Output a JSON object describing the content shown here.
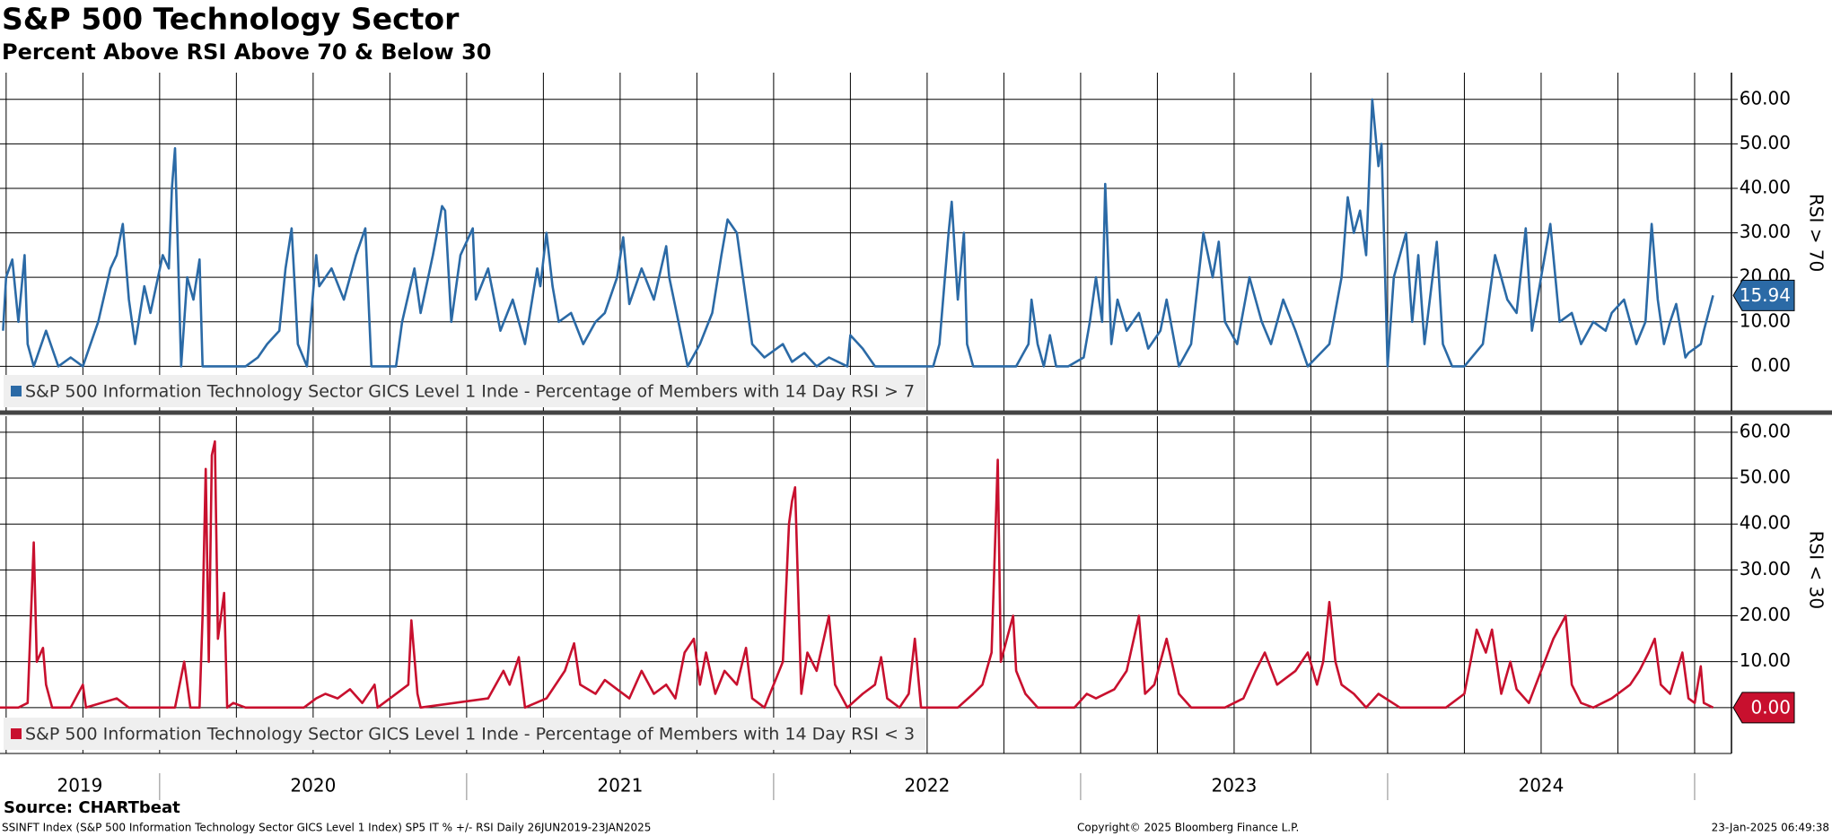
{
  "header": {
    "title": "S&P 500 Technology Sector",
    "subtitle": "Percent Above RSI Above 70 & Below 30"
  },
  "chart_data": [
    {
      "type": "line",
      "y_label": "RSI > 70",
      "x": [
        2019.49,
        2019.5,
        2019.52,
        2019.54,
        2019.56,
        2019.57,
        2019.59,
        2019.63,
        2019.67,
        2019.71,
        2019.75,
        2019.8,
        2019.84,
        2019.86,
        2019.88,
        2019.9,
        2019.92,
        2019.95,
        2019.97,
        2020.01,
        2020.03,
        2020.04,
        2020.05,
        2020.07,
        2020.09,
        2020.11,
        2020.13,
        2020.14,
        2020.28,
        2020.32,
        2020.35,
        2020.39,
        2020.41,
        2020.43,
        2020.45,
        2020.48,
        2020.51,
        2020.52,
        2020.56,
        2020.6,
        2020.64,
        2020.67,
        2020.69,
        2020.77,
        2020.79,
        2020.83,
        2020.85,
        2020.89,
        2020.92,
        2020.93,
        2020.95,
        2020.98,
        2021.02,
        2021.03,
        2021.07,
        2021.11,
        2021.15,
        2021.19,
        2021.23,
        2021.24,
        2021.26,
        2021.28,
        2021.3,
        2021.34,
        2021.38,
        2021.42,
        2021.45,
        2021.49,
        2021.51,
        2021.53,
        2021.57,
        2021.61,
        2021.65,
        2021.66,
        2021.69,
        2021.72,
        2021.76,
        2021.8,
        2021.83,
        2021.85,
        2021.88,
        2021.9,
        2021.93,
        2021.97,
        2022.03,
        2022.06,
        2022.1,
        2022.14,
        2022.18,
        2022.24,
        2022.25,
        2022.29,
        2022.33,
        2022.52,
        2022.54,
        2022.57,
        2022.58,
        2022.6,
        2022.62,
        2022.63,
        2022.65,
        2022.79,
        2022.83,
        2022.84,
        2022.86,
        2022.88,
        2022.9,
        2022.92,
        2022.96,
        2023.01,
        2023.03,
        2023.05,
        2023.07,
        2023.08,
        2023.1,
        2023.12,
        2023.15,
        2023.19,
        2023.22,
        2023.26,
        2023.28,
        2023.32,
        2023.36,
        2023.4,
        2023.43,
        2023.45,
        2023.47,
        2023.51,
        2023.55,
        2023.59,
        2023.62,
        2023.66,
        2023.7,
        2023.74,
        2023.81,
        2023.85,
        2023.87,
        2023.89,
        2023.91,
        2023.93,
        2023.95,
        2023.97,
        2023.98,
        2024.0,
        2024.02,
        2024.06,
        2024.08,
        2024.1,
        2024.12,
        2024.16,
        2024.18,
        2024.21,
        2024.25,
        2024.31,
        2024.35,
        2024.37,
        2024.39,
        2024.42,
        2024.45,
        2024.47,
        2024.5,
        2024.53,
        2024.56,
        2024.6,
        2024.63,
        2024.67,
        2024.71,
        2024.73,
        2024.77,
        2024.81,
        2024.84,
        2024.86,
        2024.88,
        2024.9,
        2024.92,
        2024.94,
        2024.97,
        2024.98,
        2025.02,
        2025.03,
        2025.06
      ],
      "series": [
        {
          "name": "S&P 500 Information Technology Sector GICS Level 1 Inde - Percentage of Members with 14 Day RSI > 7",
          "color": "#2b6aa6",
          "last_label": "15.94",
          "values": [
            8,
            20,
            24,
            10,
            25,
            5,
            0,
            8,
            0,
            2,
            0,
            10,
            22,
            25,
            32,
            15,
            5,
            18,
            12,
            25,
            22,
            40,
            49,
            0,
            20,
            15,
            24,
            0,
            0,
            2,
            5,
            8,
            22,
            31,
            5,
            0,
            25,
            18,
            22,
            15,
            25,
            31,
            0,
            0,
            10,
            22,
            12,
            25,
            36,
            35,
            10,
            25,
            31,
            15,
            22,
            8,
            15,
            5,
            22,
            18,
            30,
            18,
            10,
            12,
            5,
            10,
            12,
            20,
            29,
            14,
            22,
            15,
            27,
            20,
            10,
            0,
            5,
            12,
            25,
            33,
            30,
            20,
            5,
            2,
            5,
            1,
            3,
            0,
            2,
            0,
            7,
            4,
            0,
            0,
            5,
            30,
            37,
            15,
            30,
            5,
            0,
            0,
            5,
            15,
            5,
            0,
            7,
            0,
            0,
            2,
            10,
            20,
            10,
            41,
            5,
            15,
            8,
            12,
            4,
            8,
            15,
            0,
            5,
            30,
            20,
            28,
            10,
            5,
            20,
            10,
            5,
            15,
            8,
            0,
            5,
            20,
            38,
            30,
            35,
            25,
            60,
            45,
            50,
            0,
            20,
            30,
            10,
            25,
            5,
            28,
            5,
            0,
            0,
            5,
            25,
            20,
            15,
            12,
            31,
            8,
            20,
            32,
            10,
            12,
            5,
            10,
            8,
            12,
            15,
            5,
            10,
            32,
            15,
            5,
            10,
            14,
            2,
            3,
            5,
            8,
            15.94
          ]
        }
      ],
      "xlim": [
        2019.48,
        2025.12
      ],
      "ylim": [
        -10,
        66
      ],
      "yticks": [
        {
          "value": 0,
          "label": "0.00"
        },
        {
          "value": 10,
          "label": "10.00"
        },
        {
          "value": 20,
          "label": "20.00"
        },
        {
          "value": 30,
          "label": "30.00"
        },
        {
          "value": 40,
          "label": "40.00"
        },
        {
          "value": 50,
          "label": "50.00"
        },
        {
          "value": 60,
          "label": "60.00"
        }
      ],
      "x_grid": [
        2019.5,
        2019.75,
        2020,
        2020.25,
        2020.5,
        2020.75,
        2021,
        2021.25,
        2021.5,
        2021.75,
        2022,
        2022.25,
        2022.5,
        2022.75,
        2023,
        2023.25,
        2023.5,
        2023.75,
        2024,
        2024.25,
        2024.5,
        2024.75,
        2025
      ],
      "grid": true,
      "legend": "bottom-left"
    },
    {
      "type": "line",
      "y_label": "RSI < 30",
      "x": [
        2019.48,
        2019.54,
        2019.57,
        2019.59,
        2019.6,
        2019.62,
        2019.63,
        2019.65,
        2019.71,
        2019.75,
        2019.76,
        2019.86,
        2019.9,
        2020.05,
        2020.08,
        2020.1,
        2020.13,
        2020.14,
        2020.15,
        2020.16,
        2020.17,
        2020.18,
        2020.19,
        2020.21,
        2020.22,
        2020.24,
        2020.28,
        2020.47,
        2020.51,
        2020.54,
        2020.58,
        2020.62,
        2020.66,
        2020.7,
        2020.71,
        2020.81,
        2020.82,
        2020.84,
        2020.85,
        2021.07,
        2021.12,
        2021.14,
        2021.17,
        2021.19,
        2021.26,
        2021.32,
        2021.35,
        2021.37,
        2021.42,
        2021.45,
        2021.49,
        2021.53,
        2021.57,
        2021.61,
        2021.65,
        2021.68,
        2021.71,
        2021.74,
        2021.76,
        2021.78,
        2021.81,
        2021.84,
        2021.88,
        2021.91,
        2021.93,
        2021.97,
        2022.03,
        2022.05,
        2022.06,
        2022.07,
        2022.09,
        2022.11,
        2022.14,
        2022.18,
        2022.2,
        2022.24,
        2022.29,
        2022.33,
        2022.35,
        2022.37,
        2022.41,
        2022.44,
        2022.46,
        2022.48,
        2022.6,
        2022.65,
        2022.68,
        2022.71,
        2022.73,
        2022.74,
        2022.76,
        2022.78,
        2022.79,
        2022.82,
        2022.86,
        2022.98,
        2023.02,
        2023.05,
        2023.11,
        2023.15,
        2023.19,
        2023.21,
        2023.24,
        2023.28,
        2023.32,
        2023.36,
        2023.47,
        2023.53,
        2023.57,
        2023.6,
        2023.64,
        2023.7,
        2023.74,
        2023.77,
        2023.79,
        2023.81,
        2023.83,
        2023.85,
        2023.89,
        2023.93,
        2023.97,
        2024.04,
        2024.19,
        2024.25,
        2024.27,
        2024.29,
        2024.32,
        2024.34,
        2024.37,
        2024.4,
        2024.42,
        2024.46,
        2024.5,
        2024.54,
        2024.58,
        2024.6,
        2024.63,
        2024.67,
        2024.73,
        2024.79,
        2024.82,
        2024.85,
        2024.87,
        2024.89,
        2024.92,
        2024.96,
        2024.98,
        2025.0,
        2025.02,
        2025.03,
        2025.06
      ],
      "series": [
        {
          "name": "S&P 500 Information Technology Sector GICS Level 1 Inde - Percentage of Members with 14 Day RSI < 3",
          "color": "#c8102e",
          "last_label": "0.00",
          "values": [
            0,
            0,
            1,
            36,
            10,
            13,
            5,
            0,
            0,
            5,
            0,
            2,
            0,
            0,
            10,
            0,
            0,
            20,
            52,
            10,
            55,
            58,
            15,
            25,
            0,
            1,
            0,
            0,
            2,
            3,
            2,
            4,
            1,
            5,
            0,
            5,
            19,
            3,
            0,
            2,
            8,
            5,
            11,
            0,
            2,
            8,
            14,
            5,
            3,
            6,
            4,
            2,
            8,
            3,
            5,
            2,
            12,
            15,
            5,
            12,
            3,
            8,
            5,
            13,
            2,
            0,
            10,
            40,
            45,
            48,
            3,
            12,
            8,
            20,
            5,
            0,
            3,
            5,
            11,
            2,
            0,
            3,
            15,
            0,
            0,
            3,
            5,
            12,
            54,
            10,
            15,
            20,
            8,
            3,
            0,
            0,
            3,
            2,
            4,
            8,
            20,
            3,
            5,
            15,
            3,
            0,
            0,
            2,
            8,
            12,
            5,
            8,
            12,
            5,
            10,
            23,
            10,
            5,
            3,
            0,
            3,
            0,
            0,
            3,
            10,
            17,
            12,
            17,
            3,
            10,
            4,
            1,
            8,
            15,
            20,
            5,
            1,
            0,
            2,
            5,
            8,
            12,
            15,
            5,
            3,
            12,
            2,
            1,
            9,
            1,
            0
          ]
        }
      ],
      "xlim": [
        2019.48,
        2025.12
      ],
      "ylim": [
        -10,
        63.5
      ],
      "yticks": [
        {
          "value": 0,
          "label": "0.00"
        },
        {
          "value": 10,
          "label": "10.00"
        },
        {
          "value": 20,
          "label": "20.00"
        },
        {
          "value": 30,
          "label": "30.00"
        },
        {
          "value": 40,
          "label": "40.00"
        },
        {
          "value": 50,
          "label": "50.00"
        },
        {
          "value": 60,
          "label": "60.00"
        }
      ],
      "x_grid": [
        2019.5,
        2019.75,
        2020,
        2020.25,
        2020.5,
        2020.75,
        2021,
        2021.25,
        2021.5,
        2021.75,
        2022,
        2022.25,
        2022.5,
        2022.75,
        2023,
        2023.25,
        2023.5,
        2023.75,
        2024,
        2024.25,
        2024.5,
        2024.75,
        2025
      ],
      "xticks": [
        2019,
        2020,
        2021,
        2022,
        2023,
        2024
      ],
      "grid": true,
      "legend": "bottom-left"
    }
  ],
  "footer": {
    "source": "Source: CHARTbeat",
    "description": "SSINFT Index (S&P 500 Information Technology Sector GICS Level 1 Index) SP5 IT % +/- RSI  Daily 26JUN2019-23JAN2025",
    "copyright": "Copyright© 2025 Bloomberg Finance L.P.",
    "timestamp": "23-Jan-2025 06:49:38"
  }
}
